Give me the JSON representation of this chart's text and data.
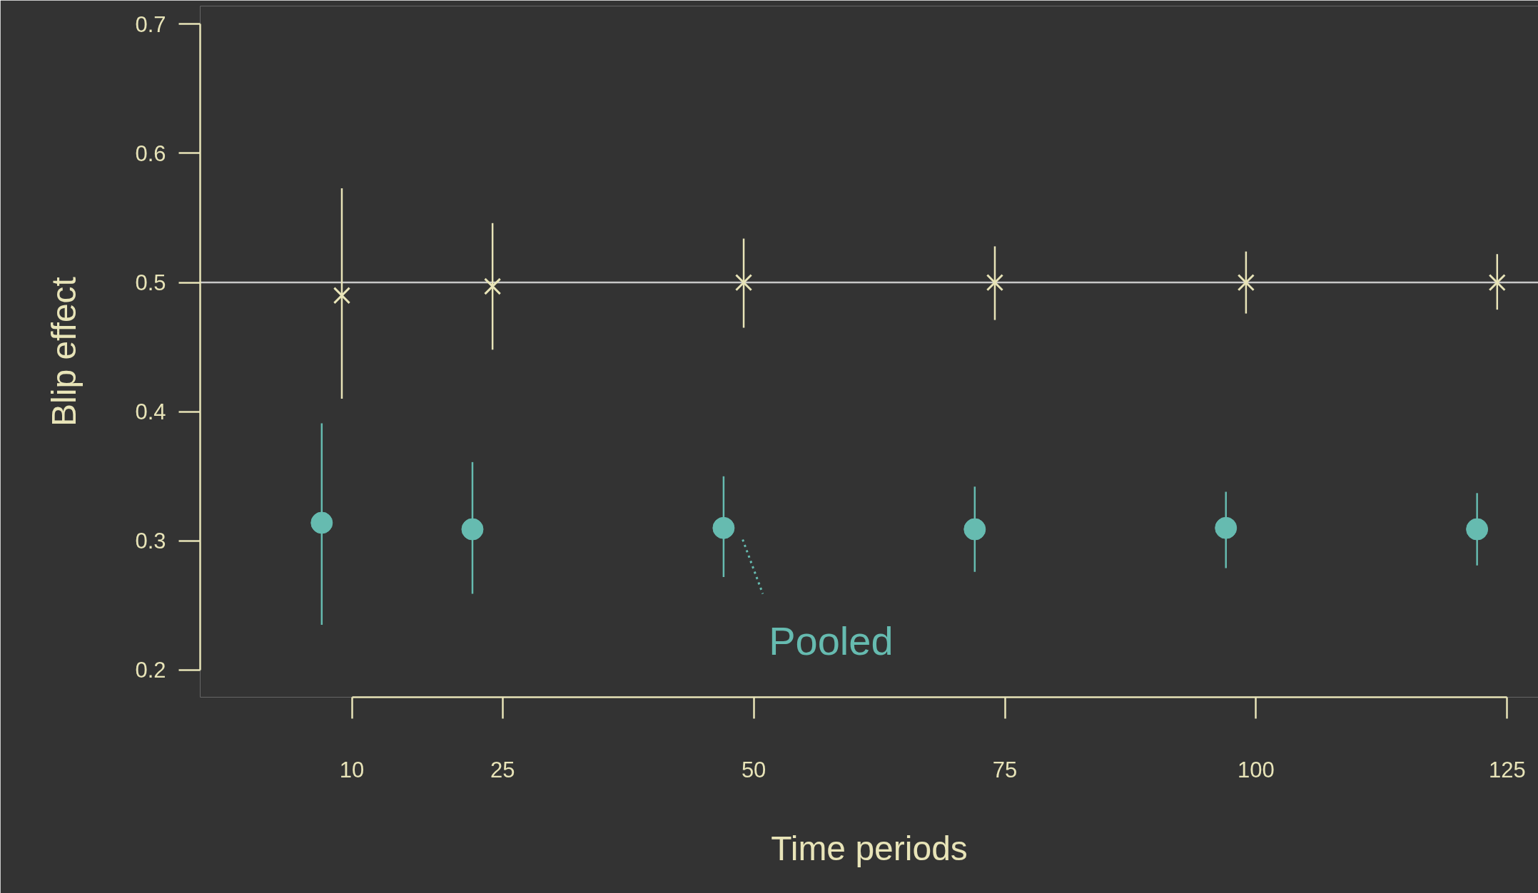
{
  "chart_data": {
    "type": "scatter",
    "xlabel": "Time periods",
    "ylabel": "Blip effect",
    "xlim": [
      -5.1,
      128.1
    ],
    "ylim": [
      0.179,
      0.714
    ],
    "xticks": [
      10,
      25,
      50,
      75,
      100,
      125
    ],
    "yticks": [
      0.2,
      0.3,
      0.4,
      0.5,
      0.6,
      0.7
    ],
    "grid": false,
    "legend": "bottom",
    "ref_lines": [
      {
        "axis": "y",
        "value": 0.5,
        "color": "#c8c8c8",
        "line_style": "solid"
      }
    ],
    "series": [
      {
        "color": "#e8e4b8",
        "marker": "cross",
        "x": [
          9,
          24,
          49,
          74,
          99,
          124
        ],
        "values": [
          0.49,
          0.497,
          0.5,
          0.5,
          0.5,
          0.5
        ],
        "errors": [
          [
            0.41,
            0.573
          ],
          [
            0.448,
            0.546
          ],
          [
            0.465,
            0.534
          ],
          [
            0.471,
            0.528
          ],
          [
            0.476,
            0.524
          ],
          [
            0.479,
            0.522
          ]
        ]
      },
      {
        "name": "Pooled",
        "color": "#66bbb0",
        "marker": "circle",
        "x": [
          7,
          22,
          47,
          72,
          97,
          122
        ],
        "values": [
          0.314,
          0.309,
          0.31,
          0.309,
          0.31,
          0.309
        ],
        "errors": [
          [
            0.235,
            0.391
          ],
          [
            0.259,
            0.361
          ],
          [
            0.272,
            0.35
          ],
          [
            0.276,
            0.342
          ],
          [
            0.279,
            0.338
          ],
          [
            0.281,
            0.337
          ]
        ]
      }
    ]
  }
}
